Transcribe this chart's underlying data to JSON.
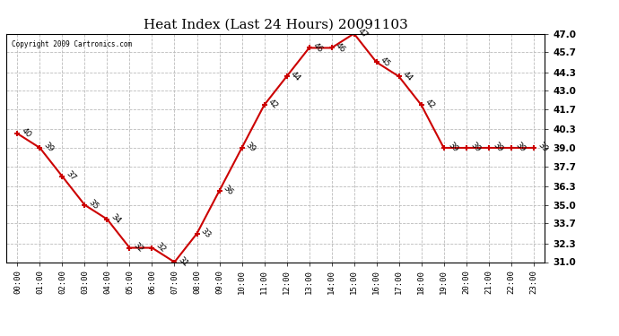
{
  "title": "Heat Index (Last 24 Hours) 20091103",
  "copyright": "Copyright 2009 Cartronics.com",
  "hours": [
    "00:00",
    "01:00",
    "02:00",
    "03:00",
    "04:00",
    "05:00",
    "06:00",
    "07:00",
    "08:00",
    "09:00",
    "10:00",
    "11:00",
    "12:00",
    "13:00",
    "14:00",
    "15:00",
    "16:00",
    "17:00",
    "18:00",
    "19:00",
    "20:00",
    "21:00",
    "22:00",
    "23:00"
  ],
  "values": [
    40,
    39,
    37,
    35,
    34,
    32,
    32,
    31,
    33,
    36,
    39,
    42,
    44,
    46,
    46,
    47,
    45,
    44,
    42,
    39,
    39,
    39,
    39,
    39
  ],
  "line_color": "#cc0000",
  "marker_color": "#cc0000",
  "grid_color": "#bbbbbb",
  "bg_color": "#ffffff",
  "title_fontsize": 11,
  "ylim_min": 31.0,
  "ylim_max": 47.0,
  "ytick_values": [
    31.0,
    32.3,
    33.7,
    35.0,
    36.3,
    37.7,
    39.0,
    40.3,
    41.7,
    43.0,
    44.3,
    45.7,
    47.0
  ]
}
